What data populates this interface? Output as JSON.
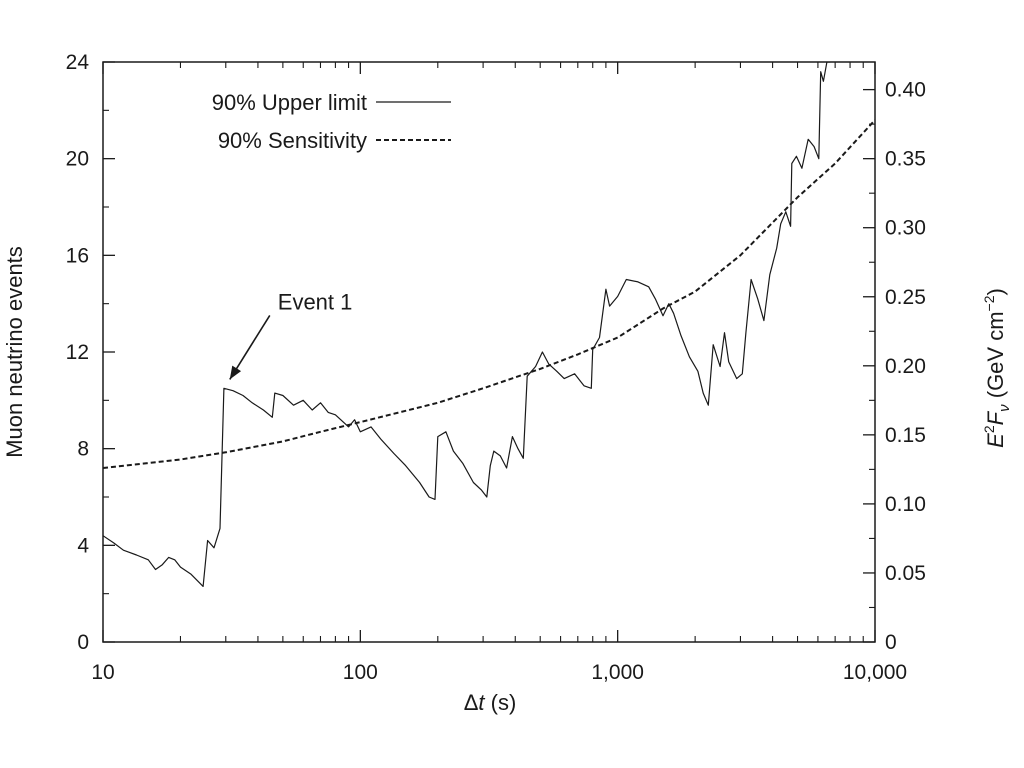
{
  "chart_data": {
    "type": "line",
    "x_scale": "log",
    "xlim": [
      10,
      10000
    ],
    "ylim_left": [
      0,
      24
    ],
    "ylim_right": [
      0,
      0.42
    ],
    "xlabel_delta": "Δ",
    "xlabel_var": "t",
    "xlabel_unit": " (s)",
    "ylabel_left": "Muon neutrino events",
    "ylabel_right": {
      "E": "E",
      "sup2": "2",
      "F": "F",
      "sub_nu": "ν",
      "unit_open": " (GeV cm",
      "unit_exp": "−2",
      "unit_close": ")"
    },
    "x_ticks": [
      {
        "value": 10,
        "label": "10"
      },
      {
        "value": 100,
        "label": "100"
      },
      {
        "value": 1000,
        "label": "1,000"
      },
      {
        "value": 10000,
        "label": "10,000"
      }
    ],
    "y_left_ticks": [
      {
        "value": 0,
        "label": "0"
      },
      {
        "value": 4,
        "label": "4"
      },
      {
        "value": 8,
        "label": "8"
      },
      {
        "value": 12,
        "label": "12"
      },
      {
        "value": 16,
        "label": "16"
      },
      {
        "value": 20,
        "label": "20"
      },
      {
        "value": 24,
        "label": "24"
      }
    ],
    "y_right_ticks": [
      {
        "value": 0,
        "label": "0"
      },
      {
        "value": 0.05,
        "label": "0.05"
      },
      {
        "value": 0.1,
        "label": "0.10"
      },
      {
        "value": 0.15,
        "label": "0.15"
      },
      {
        "value": 0.2,
        "label": "0.20"
      },
      {
        "value": 0.25,
        "label": "0.25"
      },
      {
        "value": 0.3,
        "label": "0.30"
      },
      {
        "value": 0.35,
        "label": "0.35"
      },
      {
        "value": 0.4,
        "label": "0.40"
      }
    ],
    "legend_position": "top-left",
    "grid": false,
    "series": [
      {
        "name": "90% Upper limit",
        "style": "solid",
        "points": [
          [
            10,
            4.4
          ],
          [
            11,
            4.1
          ],
          [
            12,
            3.8
          ],
          [
            13.5,
            3.6
          ],
          [
            15,
            3.4
          ],
          [
            16,
            3.0
          ],
          [
            17,
            3.2
          ],
          [
            18,
            3.5
          ],
          [
            19,
            3.4
          ],
          [
            20,
            3.1
          ],
          [
            22,
            2.8
          ],
          [
            24.5,
            2.3
          ],
          [
            25.5,
            4.2
          ],
          [
            27,
            3.9
          ],
          [
            28.5,
            4.7
          ],
          [
            29.5,
            10.5
          ],
          [
            32,
            10.4
          ],
          [
            35,
            10.2
          ],
          [
            38,
            9.9
          ],
          [
            42,
            9.6
          ],
          [
            45.5,
            9.3
          ],
          [
            46.5,
            10.3
          ],
          [
            50,
            10.2
          ],
          [
            55,
            9.8
          ],
          [
            60,
            10.0
          ],
          [
            65,
            9.6
          ],
          [
            70,
            9.9
          ],
          [
            75,
            9.5
          ],
          [
            80,
            9.4
          ],
          [
            90,
            8.9
          ],
          [
            95,
            9.2
          ],
          [
            100,
            8.7
          ],
          [
            110,
            8.9
          ],
          [
            120,
            8.4
          ],
          [
            135,
            7.8
          ],
          [
            150,
            7.3
          ],
          [
            170,
            6.6
          ],
          [
            185,
            6.0
          ],
          [
            195,
            5.9
          ],
          [
            200,
            8.5
          ],
          [
            215,
            8.7
          ],
          [
            230,
            7.9
          ],
          [
            250,
            7.4
          ],
          [
            275,
            6.6
          ],
          [
            295,
            6.3
          ],
          [
            310,
            6.0
          ],
          [
            320,
            7.3
          ],
          [
            330,
            7.9
          ],
          [
            350,
            7.7
          ],
          [
            370,
            7.2
          ],
          [
            390,
            8.5
          ],
          [
            410,
            8.0
          ],
          [
            430,
            7.6
          ],
          [
            445,
            11.0
          ],
          [
            480,
            11.4
          ],
          [
            510,
            12.0
          ],
          [
            540,
            11.5
          ],
          [
            580,
            11.2
          ],
          [
            620,
            10.9
          ],
          [
            680,
            11.1
          ],
          [
            740,
            10.6
          ],
          [
            790,
            10.5
          ],
          [
            800,
            12.1
          ],
          [
            850,
            12.6
          ],
          [
            900,
            14.6
          ],
          [
            930,
            13.9
          ],
          [
            1000,
            14.3
          ],
          [
            1080,
            15.0
          ],
          [
            1200,
            14.9
          ],
          [
            1320,
            14.7
          ],
          [
            1400,
            14.2
          ],
          [
            1500,
            13.5
          ],
          [
            1580,
            14.0
          ],
          [
            1650,
            13.6
          ],
          [
            1760,
            12.7
          ],
          [
            1900,
            11.8
          ],
          [
            2050,
            11.2
          ],
          [
            2150,
            10.3
          ],
          [
            2250,
            9.8
          ],
          [
            2350,
            12.3
          ],
          [
            2500,
            11.4
          ],
          [
            2600,
            12.8
          ],
          [
            2700,
            11.6
          ],
          [
            2900,
            10.9
          ],
          [
            3050,
            11.1
          ],
          [
            3150,
            12.8
          ],
          [
            3300,
            15.0
          ],
          [
            3500,
            14.2
          ],
          [
            3700,
            13.3
          ],
          [
            3900,
            15.2
          ],
          [
            4150,
            16.3
          ],
          [
            4300,
            17.3
          ],
          [
            4500,
            17.8
          ],
          [
            4700,
            17.2
          ],
          [
            4750,
            19.8
          ],
          [
            4950,
            20.1
          ],
          [
            5200,
            19.6
          ],
          [
            5500,
            20.8
          ],
          [
            5800,
            20.5
          ],
          [
            6050,
            20.0
          ],
          [
            6150,
            23.6
          ],
          [
            6300,
            23.2
          ],
          [
            6500,
            24.0
          ],
          [
            6700,
            24.0
          ]
        ]
      },
      {
        "name": "90% Sensitivity",
        "style": "dashed",
        "points": [
          [
            10,
            7.2
          ],
          [
            20,
            7.55
          ],
          [
            30,
            7.85
          ],
          [
            50,
            8.3
          ],
          [
            70,
            8.7
          ],
          [
            100,
            9.1
          ],
          [
            200,
            9.9
          ],
          [
            300,
            10.5
          ],
          [
            500,
            11.3
          ],
          [
            700,
            11.9
          ],
          [
            1000,
            12.6
          ],
          [
            1500,
            13.8
          ],
          [
            2000,
            14.5
          ],
          [
            3000,
            16.0
          ],
          [
            5000,
            18.4
          ],
          [
            7000,
            19.8
          ],
          [
            10000,
            21.6
          ]
        ]
      }
    ],
    "annotations": [
      {
        "text": "Event 1",
        "x": 30,
        "y": 10.7
      }
    ]
  }
}
